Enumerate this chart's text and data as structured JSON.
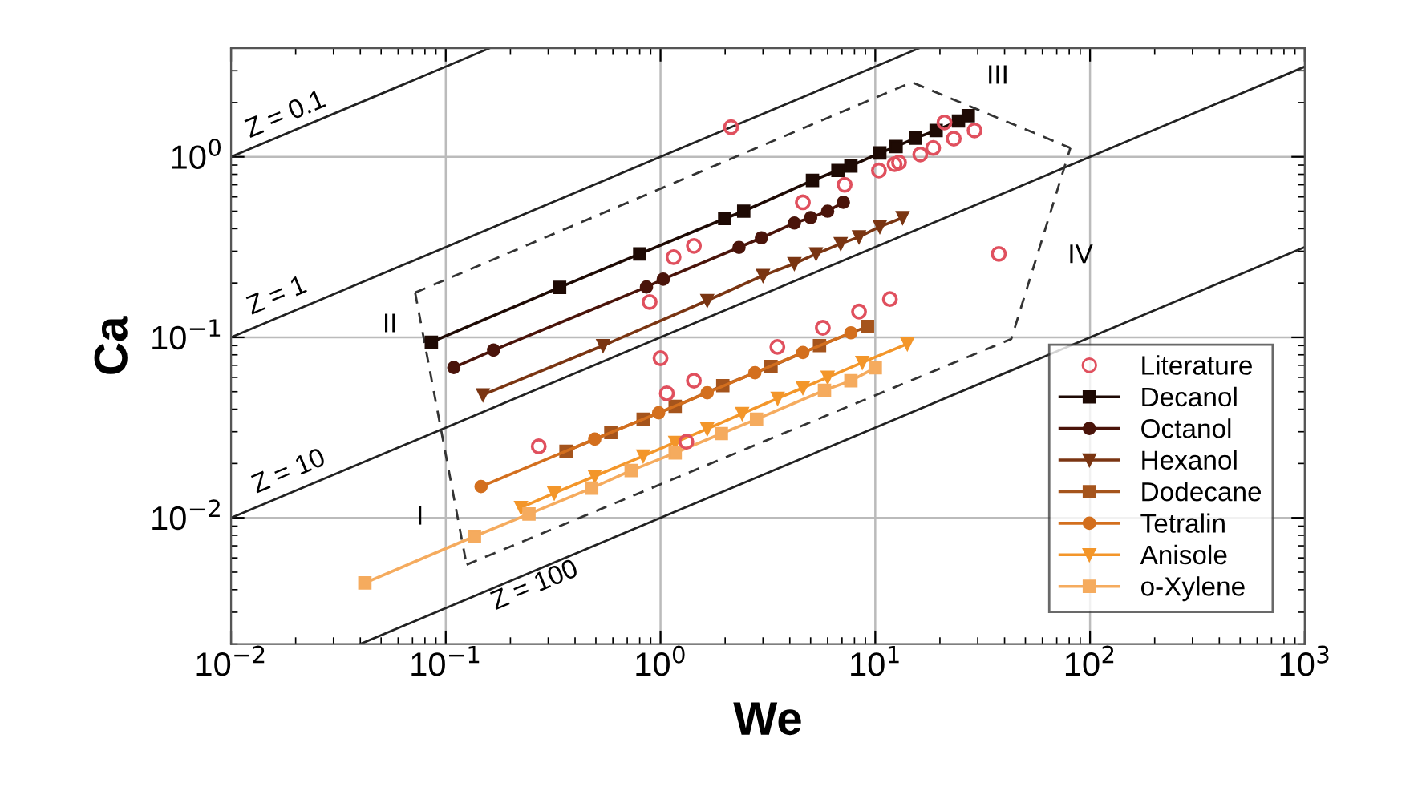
{
  "chart_data": {
    "type": "line",
    "xlabel": "We",
    "ylabel": "Ca",
    "log": "xy",
    "xlim": [
      0.01,
      1000
    ],
    "ylim": [
      0.002,
      4
    ],
    "xticks": [
      {
        "value": 0.01,
        "label": "10$^{−2}$"
      },
      {
        "value": 0.1,
        "label": "10$^{−1}$"
      },
      {
        "value": 1,
        "label": "10$^{0}$"
      },
      {
        "value": 10,
        "label": "10$^{1}$"
      },
      {
        "value": 100,
        "label": "10$^{2}$"
      },
      {
        "value": 1000,
        "label": "10$^{3}$"
      }
    ],
    "yticks": [
      {
        "value": 0.01,
        "label": "10$^{−2}$"
      },
      {
        "value": 0.1,
        "label": "10$^{−1}$"
      },
      {
        "value": 1,
        "label": "10$^{0}$"
      }
    ],
    "grid": true,
    "legend": "bottom right",
    "series": [
      {
        "type": "line",
        "color": "#222222",
        "line_style": "solid",
        "marker": "none",
        "x": [
          0.01,
          0.16
        ],
        "values": [
          1,
          4
        ]
      },
      {
        "type": "line",
        "color": "#222222",
        "line_style": "solid",
        "marker": "none",
        "x": [
          0.01,
          16
        ],
        "values": [
          0.1,
          4
        ]
      },
      {
        "type": "line",
        "color": "#222222",
        "line_style": "solid",
        "marker": "none",
        "x": [
          0.01,
          1000
        ],
        "values": [
          0.01,
          3.16
        ]
      },
      {
        "type": "line",
        "color": "#222222",
        "line_style": "solid",
        "marker": "none",
        "x": [
          0.04,
          1000
        ],
        "values": [
          0.002,
          0.316
        ]
      },
      {
        "type": "line",
        "color": "#333333",
        "line_style": "dashed",
        "marker": "none",
        "x": [
          0.072,
          0.125
        ],
        "values": [
          0.177,
          0.0055
        ]
      },
      {
        "type": "line",
        "color": "#333333",
        "line_style": "dashed",
        "marker": "none",
        "x": [
          0.125,
          43,
          81
        ],
        "values": [
          0.0055,
          0.098,
          1.12
        ]
      },
      {
        "type": "line",
        "color": "#333333",
        "line_style": "dashed",
        "marker": "none",
        "x": [
          0.072,
          14.8,
          81
        ],
        "values": [
          0.177,
          2.59,
          1.12
        ]
      },
      {
        "type": "scatter",
        "name": "Literature",
        "color": "#e0505e",
        "marker": "circle",
        "x": [
          2.13,
          1.15,
          1.43,
          0.89,
          1.0,
          4.6,
          7.2,
          10.4,
          12.3,
          12.9,
          16.2,
          18.6,
          21,
          23.2,
          29,
          37.6,
          11.7,
          8.4,
          5.7,
          3.5,
          0.271,
          1.07,
          1.43,
          1.32
        ],
        "values": [
          1.46,
          0.278,
          0.321,
          0.157,
          0.0766,
          0.56,
          0.7,
          0.84,
          0.91,
          0.93,
          1.03,
          1.12,
          1.55,
          1.26,
          1.4,
          0.29,
          0.163,
          0.139,
          0.113,
          0.0885,
          0.0249,
          0.0489,
          0.0575,
          0.0264
        ]
      },
      {
        "name": "Decanol",
        "color": "#1e0a04",
        "line_style": "solid",
        "marker": "square",
        "x": [
          0.0857,
          0.339,
          0.8,
          1.99,
          2.44,
          5.1,
          6.7,
          7.7,
          10.5,
          12.5,
          15.4,
          19.2,
          24.4,
          27.1
        ],
        "values": [
          0.094,
          0.189,
          0.29,
          0.455,
          0.5,
          0.74,
          0.84,
          0.89,
          1.05,
          1.14,
          1.27,
          1.4,
          1.58,
          1.69
        ]
      },
      {
        "name": "Octanol",
        "color": "#4a140a",
        "line_style": "solid",
        "marker": "circle",
        "x": [
          0.109,
          0.167,
          0.86,
          1.03,
          2.32,
          2.95,
          4.2,
          5.0,
          6.0,
          7.1
        ],
        "values": [
          0.068,
          0.085,
          0.19,
          0.21,
          0.315,
          0.356,
          0.43,
          0.46,
          0.5,
          0.56
        ]
      },
      {
        "name": "Hexanol",
        "color": "#7a3512",
        "line_style": "solid",
        "marker": "triangle",
        "x": [
          0.149,
          0.54,
          1.65,
          3.0,
          4.2,
          5.3,
          6.9,
          8.4,
          10.5,
          13.4
        ],
        "values": [
          0.048,
          0.09,
          0.16,
          0.22,
          0.256,
          0.29,
          0.33,
          0.36,
          0.41,
          0.46
        ]
      },
      {
        "name": "Dodecane",
        "color": "#a5541c",
        "line_style": "solid",
        "marker": "square",
        "x": [
          0.363,
          0.587,
          0.83,
          1.17,
          1.95,
          3.27,
          5.5,
          9.2
        ],
        "values": [
          0.0234,
          0.0297,
          0.0352,
          0.0415,
          0.054,
          0.069,
          0.09,
          0.115
        ]
      },
      {
        "name": "Tetralin",
        "color": "#d36f1e",
        "line_style": "solid",
        "marker": "circle",
        "x": [
          0.146,
          0.494,
          0.98,
          1.65,
          2.75,
          4.6,
          7.7
        ],
        "values": [
          0.0149,
          0.0273,
          0.0382,
          0.0493,
          0.0637,
          0.0824,
          0.106
        ]
      },
      {
        "name": "Anisole",
        "color": "#f3962a",
        "line_style": "solid",
        "marker": "triangle",
        "x": [
          0.224,
          0.32,
          0.494,
          0.83,
          1.17,
          1.65,
          2.4,
          3.51,
          4.6,
          6.0,
          8.7,
          14.1
        ],
        "values": [
          0.0114,
          0.0137,
          0.017,
          0.022,
          0.0262,
          0.0311,
          0.0378,
          0.0459,
          0.0525,
          0.06,
          0.0725,
          0.092
        ]
      },
      {
        "name": "o-Xylene",
        "color": "#f5ab5e",
        "line_style": "solid",
        "marker": "square",
        "x": [
          0.042,
          0.136,
          0.244,
          0.478,
          0.73,
          1.17,
          1.92,
          2.8,
          5.8,
          7.7,
          10.0
        ],
        "values": [
          0.00436,
          0.0079,
          0.0105,
          0.0146,
          0.0183,
          0.0229,
          0.0293,
          0.0352,
          0.0509,
          0.0575,
          0.0678
        ]
      }
    ],
    "annotations": [
      "Z = 0.1",
      "Z = 1",
      "Z = 10",
      "Z = 100",
      "I",
      "II",
      "III",
      "IV"
    ]
  }
}
